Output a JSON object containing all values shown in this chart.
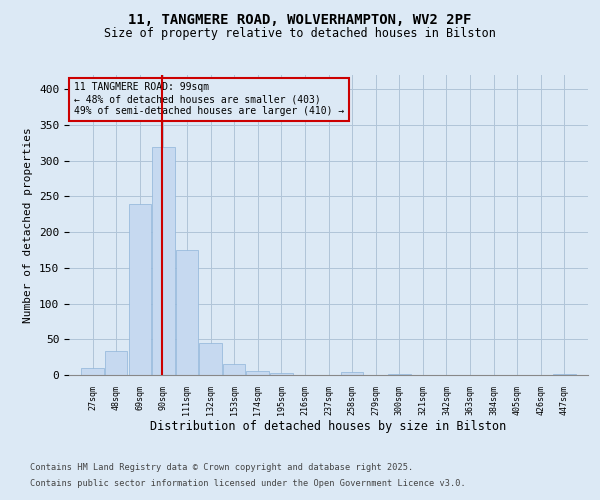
{
  "title1": "11, TANGMERE ROAD, WOLVERHAMPTON, WV2 2PF",
  "title2": "Size of property relative to detached houses in Bilston",
  "xlabel": "Distribution of detached houses by size in Bilston",
  "ylabel": "Number of detached properties",
  "bins": [
    27,
    48,
    69,
    90,
    111,
    132,
    153,
    174,
    195,
    216,
    237,
    258,
    279,
    300,
    321,
    342,
    363,
    384,
    405,
    426,
    447
  ],
  "values": [
    10,
    33,
    240,
    319,
    175,
    45,
    16,
    6,
    3,
    0,
    0,
    4,
    0,
    2,
    0,
    0,
    0,
    0,
    0,
    0,
    2
  ],
  "bar_color": "#c6d9f0",
  "bar_edgecolor": "#8fb4d9",
  "grid_color": "#b0c4d8",
  "background_color": "#dce9f5",
  "property_sqm": 99,
  "red_line_color": "#cc0000",
  "annotation_text": "11 TANGMERE ROAD: 99sqm\n← 48% of detached houses are smaller (403)\n49% of semi-detached houses are larger (410) →",
  "annotation_box_color": "#cc0000",
  "footer1": "Contains HM Land Registry data © Crown copyright and database right 2025.",
  "footer2": "Contains public sector information licensed under the Open Government Licence v3.0.",
  "ylim": [
    0,
    420
  ],
  "yticks": [
    0,
    50,
    100,
    150,
    200,
    250,
    300,
    350,
    400
  ]
}
